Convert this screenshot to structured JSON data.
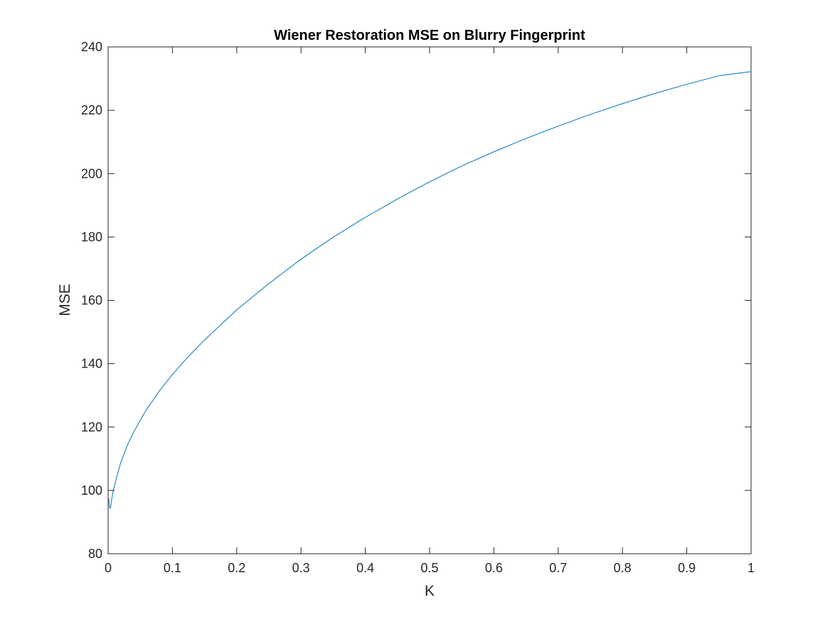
{
  "chart_data": {
    "type": "line",
    "title": "Wiener Restoration MSE on Blurry Fingerprint",
    "xlabel": "K",
    "ylabel": "MSE",
    "xlim": [
      0,
      1
    ],
    "ylim": [
      80,
      240
    ],
    "xticks": [
      0,
      0.1,
      0.2,
      0.3,
      0.4,
      0.5,
      0.6,
      0.7,
      0.8,
      0.9,
      1
    ],
    "xtick_labels": [
      "0",
      "0.1",
      "0.2",
      "0.3",
      "0.4",
      "0.5",
      "0.6",
      "0.7",
      "0.8",
      "0.9",
      "1"
    ],
    "yticks": [
      80,
      100,
      120,
      140,
      160,
      180,
      200,
      220,
      240
    ],
    "ytick_labels": [
      "80",
      "100",
      "120",
      "140",
      "160",
      "180",
      "200",
      "220",
      "240"
    ],
    "grid": false,
    "box": true,
    "series": [
      {
        "color": "#0072BD",
        "x": [
          0.001,
          0.002,
          0.003,
          0.004,
          0.005,
          0.007,
          0.01,
          0.015,
          0.02,
          0.03,
          0.04,
          0.05,
          0.06,
          0.08,
          0.1,
          0.12,
          0.15,
          0.2,
          0.25,
          0.3,
          0.35,
          0.4,
          0.45,
          0.5,
          0.55,
          0.6,
          0.65,
          0.7,
          0.75,
          0.8,
          0.85,
          0.9,
          0.95,
          1.0
        ],
        "y": [
          97.5,
          95.0,
          94.3,
          94.8,
          96.3,
          99.0,
          101.5,
          105.5,
          109.0,
          114.3,
          118.5,
          122.2,
          125.6,
          131.5,
          136.6,
          141.2,
          147.5,
          157.0,
          165.3,
          173.0,
          179.9,
          186.2,
          192.0,
          197.4,
          202.4,
          206.9,
          211.1,
          215.0,
          218.7,
          222.1,
          225.3,
          228.2,
          230.9,
          232.2
        ]
      }
    ]
  }
}
